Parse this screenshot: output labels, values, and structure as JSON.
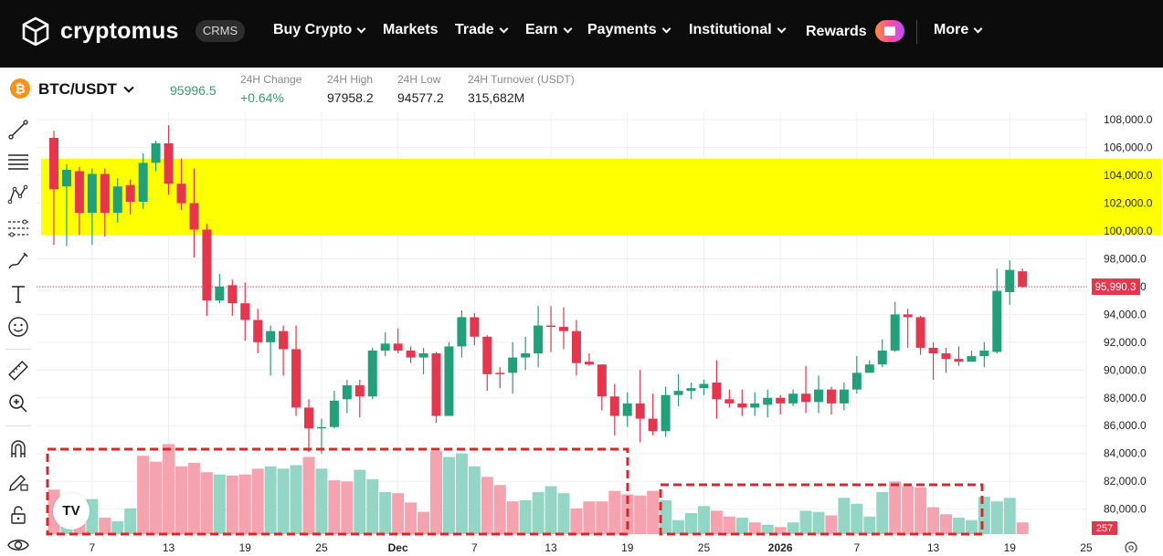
{
  "nav": {
    "logo_text": "cryptomus",
    "badge": "CRMS",
    "items": [
      {
        "label": "Buy Crypto",
        "dropdown": true
      },
      {
        "label": "Markets",
        "dropdown": false
      },
      {
        "label": "Trade",
        "dropdown": true
      },
      {
        "label": "Earn",
        "dropdown": true
      },
      {
        "label": "Payments",
        "dropdown": true
      },
      {
        "label": "Institutional",
        "dropdown": true
      },
      {
        "label": "Rewards",
        "dropdown": false
      },
      {
        "label": "More",
        "dropdown": true
      }
    ]
  },
  "ticker": {
    "coin_symbol": "₿",
    "pair": "BTC/USDT",
    "last_price": "95996.5",
    "stats": [
      {
        "label": "24H Change",
        "value": "+0.64%"
      },
      {
        "label": "24H High",
        "value": "97958.2"
      },
      {
        "label": "24H Low",
        "value": "94577.2"
      },
      {
        "label": "24H Turnover (USDT)",
        "value": "315,682M"
      }
    ]
  },
  "toolbar": {
    "tools": [
      "trend-line-icon",
      "horizontal-lines-icon",
      "pattern-icon",
      "fib-icon",
      "brush-icon",
      "text-icon",
      "emoji-icon",
      "ruler-icon",
      "zoom-in-icon",
      "magnet-icon",
      "lock-pencil-icon",
      "unlock-icon",
      "eye-icon"
    ]
  },
  "chart_data": {
    "type": "candlestick",
    "y_ticks": [
      "108,000.0",
      "106,000.0",
      "104,000.0",
      "102,000.0",
      "100,000.0",
      "98,000.0",
      "96,000.0",
      "94,000.0",
      "92,000.0",
      "90,000.0",
      "88,000.0",
      "86,000.0",
      "84,000.0",
      "82,000.0",
      "80,000.0"
    ],
    "ylim": [
      78400,
      108600
    ],
    "x_ticks": [
      {
        "label": "7",
        "index": 3
      },
      {
        "label": "13",
        "index": 9
      },
      {
        "label": "19",
        "index": 15
      },
      {
        "label": "25",
        "index": 21
      },
      {
        "label": "Dec",
        "index": 27
      },
      {
        "label": "7",
        "index": 33
      },
      {
        "label": "13",
        "index": 39
      },
      {
        "label": "19",
        "index": 45
      },
      {
        "label": "25",
        "index": 51
      },
      {
        "label": "2026",
        "index": 57
      },
      {
        "label": "7",
        "index": 63
      },
      {
        "label": "13",
        "index": 69
      },
      {
        "label": "19",
        "index": 75
      },
      {
        "label": "25",
        "index": 81
      }
    ],
    "price_marker": "95,990.3",
    "volume_marker": "257",
    "highlight_band": [
      99700,
      105200
    ],
    "colors": {
      "up": "#22a07a",
      "down": "#e5364e",
      "band": "#ffff00",
      "box": "#d6282c",
      "vol_up": "#94d6c6",
      "vol_down": "#f5a3ae"
    },
    "candles": [
      [
        106700,
        103000,
        107200,
        99000
      ],
      [
        103200,
        104400,
        104800,
        98900
      ],
      [
        104300,
        101300,
        104600,
        99700
      ],
      [
        101300,
        104100,
        104500,
        99000
      ],
      [
        104100,
        101300,
        104500,
        99600
      ],
      [
        101300,
        103200,
        103800,
        100600
      ],
      [
        103300,
        102100,
        103700,
        101200
      ],
      [
        102100,
        104900,
        105600,
        101600
      ],
      [
        104900,
        106300,
        106500,
        104300
      ],
      [
        106300,
        103400,
        107600,
        102600
      ],
      [
        103400,
        102000,
        105200,
        101500
      ],
      [
        102000,
        100100,
        104500,
        98100
      ],
      [
        100100,
        95000,
        100500,
        93900
      ],
      [
        95000,
        96000,
        96900,
        94800
      ],
      [
        96100,
        94800,
        96500,
        93900
      ],
      [
        94800,
        93600,
        96300,
        92100
      ],
      [
        93600,
        92000,
        94400,
        91200
      ],
      [
        92000,
        92800,
        93200,
        89600
      ],
      [
        92800,
        91500,
        93200,
        89600
      ],
      [
        91500,
        87300,
        93200,
        86700
      ],
      [
        87300,
        85800,
        87900,
        84100
      ],
      [
        85800,
        85900,
        86500,
        84000
      ],
      [
        85900,
        87800,
        88500,
        85800
      ],
      [
        87900,
        88900,
        89300,
        86900
      ],
      [
        88900,
        88100,
        89300,
        86600
      ],
      [
        88100,
        91400,
        91600,
        87900
      ],
      [
        91400,
        91900,
        92700,
        91000
      ],
      [
        91900,
        91400,
        93000,
        91200
      ],
      [
        91400,
        90900,
        91700,
        90500
      ],
      [
        90900,
        91200,
        91600,
        89700
      ],
      [
        91200,
        86700,
        91300,
        86200
      ],
      [
        86700,
        91700,
        92000,
        86700
      ],
      [
        91700,
        93800,
        94300,
        90900
      ],
      [
        93800,
        92400,
        94100,
        91800
      ],
      [
        92400,
        89700,
        92500,
        88500
      ],
      [
        89800,
        89700,
        90200,
        88700
      ],
      [
        89800,
        90900,
        92000,
        88300
      ],
      [
        90900,
        91200,
        92400,
        90000
      ],
      [
        91200,
        93200,
        94600,
        90200
      ],
      [
        93200,
        93100,
        94600,
        91300
      ],
      [
        93100,
        92800,
        94500,
        91500
      ],
      [
        92800,
        90500,
        93600,
        89600
      ],
      [
        90600,
        90400,
        91200,
        90300
      ],
      [
        90400,
        88100,
        90400,
        87100
      ],
      [
        88100,
        86700,
        89000,
        85300
      ],
      [
        86700,
        87600,
        88400,
        85900
      ],
      [
        87600,
        86500,
        90000,
        84800
      ],
      [
        86500,
        85600,
        88300,
        85300
      ],
      [
        85600,
        88200,
        88800,
        85200
      ],
      [
        88200,
        88500,
        89700,
        87400
      ],
      [
        88500,
        88700,
        89100,
        87900
      ],
      [
        88700,
        89000,
        89300,
        88200
      ],
      [
        89100,
        87900,
        90700,
        86500
      ],
      [
        87900,
        87600,
        88600,
        87300
      ],
      [
        87600,
        87300,
        88600,
        86700
      ],
      [
        87300,
        87600,
        88400,
        86700
      ],
      [
        87500,
        88000,
        88600,
        86600
      ],
      [
        88000,
        87600,
        88200,
        86800
      ],
      [
        87600,
        88300,
        88600,
        87400
      ],
      [
        88300,
        87700,
        90300,
        86900
      ],
      [
        87700,
        88600,
        89600,
        86900
      ],
      [
        88600,
        87600,
        88800,
        86800
      ],
      [
        87600,
        88600,
        89100,
        87100
      ],
      [
        88600,
        89800,
        91000,
        88300
      ],
      [
        89800,
        90400,
        90700,
        89900
      ],
      [
        90400,
        91400,
        92200,
        90200
      ],
      [
        91400,
        94000,
        94900,
        91300
      ],
      [
        94000,
        93800,
        94400,
        91600
      ],
      [
        93800,
        91600,
        93900,
        91100
      ],
      [
        91600,
        91200,
        92000,
        89300
      ],
      [
        91200,
        90800,
        91600,
        89800
      ],
      [
        90800,
        90600,
        91700,
        90300
      ],
      [
        90600,
        91000,
        91400,
        90600
      ],
      [
        91000,
        91400,
        92000,
        90200
      ],
      [
        91300,
        95700,
        97300,
        91200
      ],
      [
        95600,
        97200,
        97900,
        94700
      ],
      [
        97100,
        96000,
        97300,
        95900
      ]
    ],
    "volumes": [
      [
        38,
        0
      ],
      [
        30,
        1
      ],
      [
        28,
        0
      ],
      [
        30,
        1
      ],
      [
        14,
        0
      ],
      [
        11,
        1
      ],
      [
        22,
        1
      ],
      [
        67,
        0
      ],
      [
        62,
        0
      ],
      [
        77,
        0
      ],
      [
        58,
        0
      ],
      [
        61,
        0
      ],
      [
        53,
        0
      ],
      [
        51,
        1
      ],
      [
        50,
        0
      ],
      [
        51,
        0
      ],
      [
        56,
        0
      ],
      [
        58,
        1
      ],
      [
        56,
        1
      ],
      [
        59,
        1
      ],
      [
        66,
        0
      ],
      [
        56,
        1
      ],
      [
        46,
        0
      ],
      [
        45,
        0
      ],
      [
        55,
        1
      ],
      [
        47,
        1
      ],
      [
        36,
        1
      ],
      [
        35,
        0
      ],
      [
        27,
        0
      ],
      [
        19,
        0
      ],
      [
        71,
        0
      ],
      [
        66,
        1
      ],
      [
        69,
        1
      ],
      [
        58,
        1
      ],
      [
        49,
        0
      ],
      [
        42,
        0
      ],
      [
        28,
        0
      ],
      [
        29,
        1
      ],
      [
        36,
        1
      ],
      [
        41,
        1
      ],
      [
        35,
        1
      ],
      [
        22,
        0
      ],
      [
        28,
        0
      ],
      [
        28,
        0
      ],
      [
        37,
        0
      ],
      [
        34,
        0
      ],
      [
        33,
        0
      ],
      [
        37,
        0
      ],
      [
        29,
        1
      ],
      [
        12,
        1
      ],
      [
        18,
        1
      ],
      [
        24,
        1
      ],
      [
        20,
        0
      ],
      [
        15,
        0
      ],
      [
        14,
        1
      ],
      [
        10,
        0
      ],
      [
        8,
        1
      ],
      [
        6,
        0
      ],
      [
        10,
        1
      ],
      [
        20,
        1
      ],
      [
        19,
        1
      ],
      [
        16,
        0
      ],
      [
        31,
        1
      ],
      [
        26,
        1
      ],
      [
        15,
        1
      ],
      [
        36,
        1
      ],
      [
        45,
        0
      ],
      [
        41,
        0
      ],
      [
        40,
        0
      ],
      [
        23,
        0
      ],
      [
        17,
        0
      ],
      [
        14,
        1
      ],
      [
        12,
        1
      ],
      [
        32,
        1
      ],
      [
        28,
        1
      ],
      [
        31,
        1
      ],
      [
        10,
        0
      ]
    ]
  }
}
